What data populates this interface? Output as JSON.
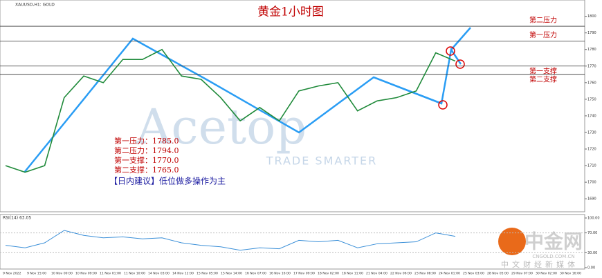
{
  "chart_data": [
    {
      "type": "line",
      "title": "黄金1小时图",
      "symbol": "XAUUSD,H1: GOLD",
      "categories": [
        "9 Nov 2022",
        "9 Nov 15:00",
        "10 Nov 00:00",
        "10 Nov 09:00",
        "11 Nov 01:00",
        "11 Nov 10:00",
        "14 Nov 03:00",
        "14 Nov 12:00",
        "15 Nov 05:00",
        "15 Nov 14:00",
        "16 Nov 07:00",
        "16 Nov 16:00",
        "17 Nov 09:00",
        "18 Nov 02:00",
        "18 Nov 11:00",
        "21 Nov 04:00",
        "22 Nov 06:00",
        "23 Nov 08:00",
        "24 Nov 01:00",
        "25 Nov 03:00",
        "28 Nov 05:00",
        "29 Nov 07:00",
        "30 Nov 02:00",
        "30 Nov 16:00"
      ],
      "series": [
        {
          "name": "XAUUSD",
          "color": "#1f8a3a",
          "values": [
            1710,
            1706,
            1710,
            1751,
            1764,
            1760,
            1774,
            1774,
            1780,
            1764,
            1762,
            1751,
            1737,
            1745,
            1737,
            1755,
            1758,
            1760,
            1743,
            1749,
            1751,
            1755,
            1778,
            1773
          ]
        }
      ],
      "ylim": [
        1683,
        1809
      ],
      "yticks": [
        1690,
        1700,
        1710,
        1720,
        1730,
        1740,
        1750,
        1760,
        1770,
        1780,
        1790,
        1800
      ],
      "levels": [
        {
          "name": "第二压力",
          "value": 1794
        },
        {
          "name": "第一压力",
          "value": 1785
        },
        {
          "name": "第一支撑",
          "value": 1770
        },
        {
          "name": "第二支撑",
          "value": 1765
        }
      ],
      "notes": [
        "第一压力：1785.0",
        "第二压力：1794.0",
        "第一支撑：1770.0",
        "第二支撑：1765.0"
      ],
      "advice": "【日内建议】低位做多操作为主",
      "watermark": [
        "Acetop",
        "TRADE SMARTER"
      ]
    },
    {
      "type": "line",
      "title": "RSI(14) 63.05",
      "series": [
        {
          "name": "RSI",
          "color": "#3a8fd8",
          "values": [
            45,
            40,
            50,
            75,
            65,
            60,
            62,
            58,
            60,
            50,
            45,
            42,
            35,
            40,
            38,
            55,
            52,
            55,
            40,
            48,
            50,
            52,
            70,
            63
          ]
        }
      ],
      "ylim": [
        0,
        100
      ],
      "yticks": [
        {
          "value": 100,
          "label": "100.00"
        },
        {
          "value": 70,
          "label": "70.00"
        },
        {
          "value": 30,
          "label": "30.00"
        },
        {
          "value": 0,
          "label": "0.00"
        }
      ],
      "brand": [
        "中金网",
        "CNGOLD.COM.CN",
        "中文财经新媒体"
      ]
    }
  ]
}
